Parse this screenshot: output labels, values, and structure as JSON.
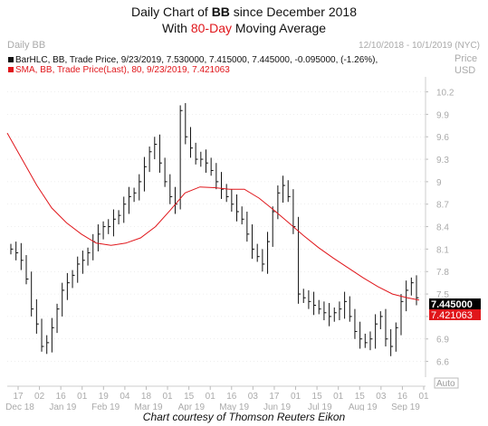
{
  "title": {
    "line1_prefix": "Daily Chart of ",
    "line1_ticker": "BB",
    "line1_suffix": " since December 2018",
    "line2_prefix": "With ",
    "line2_highlight": "80-Day",
    "line2_suffix": " Moving Average"
  },
  "chart_header": {
    "name": "Daily BB",
    "date_range": "12/10/2018 - 10/1/2019 (NYC)",
    "price_label": "Price",
    "currency_label": "USD"
  },
  "legend": {
    "bar_line": "BarHLC, BB, Trade Price, 9/23/2019, 7.530000, 7.415000, 7.445000, -0.095000, (-1.26%),",
    "sma_line": "SMA, BB, Trade Price(Last), 80, 9/23/2019, 7.421063"
  },
  "badges": {
    "last_price": "7.445000",
    "sma_value": "7.421063",
    "auto": "Auto"
  },
  "caption": "Chart courtesy of Thomson Reuters Eikon",
  "colors": {
    "price_bars": "#111111",
    "sma_line": "#e0161b",
    "highlight_text": "#e0161b",
    "axis_text": "#aaaaaa",
    "grid": "#dddddd"
  },
  "chart_data": {
    "type": "line",
    "ylim": [
      6.45,
      10.4
    ],
    "y_ticks": [
      "10.2",
      "9.9",
      "9.6",
      "9.3",
      "9",
      "8.7",
      "8.4",
      "8.1",
      "7.8",
      "7.5",
      "7.2",
      "6.9",
      "6.6"
    ],
    "x_day_ticks": [
      "17",
      "02",
      "16",
      "01",
      "19",
      "04",
      "18",
      "01",
      "15",
      "01",
      "16",
      "03",
      "17",
      "01",
      "15",
      "01",
      "15",
      "03",
      "16",
      "01"
    ],
    "x_month_labels": [
      "Dec 18",
      "Jan 19",
      "Feb 19",
      "Mar 19",
      "Apr 19",
      "May 19",
      "Jun 19",
      "Jul 19",
      "Aug 19",
      "Sep 19"
    ],
    "series": [
      {
        "name": "BarHLC, BB, Trade Price",
        "approx_closes": [
          8.1,
          8.05,
          7.95,
          7.7,
          7.3,
          7.1,
          6.8,
          6.85,
          7.05,
          7.3,
          7.55,
          7.65,
          7.75,
          7.9,
          7.95,
          8.05,
          8.2,
          8.3,
          8.4,
          8.4,
          8.5,
          8.55,
          8.7,
          8.8,
          8.85,
          9.0,
          9.2,
          9.4,
          9.5,
          9.25,
          9.0,
          8.8,
          8.7,
          9.95,
          9.6,
          9.45,
          9.3,
          9.3,
          9.25,
          9.15,
          9.0,
          8.9,
          8.8,
          8.7,
          8.6,
          8.5,
          8.3,
          8.1,
          8.0,
          7.9,
          8.2,
          8.6,
          8.85,
          8.95,
          8.8,
          8.4,
          7.5,
          7.45,
          7.4,
          7.35,
          7.3,
          7.25,
          7.2,
          7.25,
          7.3,
          7.4,
          7.2,
          7.0,
          6.9,
          6.85,
          6.9,
          7.1,
          7.2,
          6.9,
          6.8,
          7.05,
          7.4,
          7.55,
          7.65,
          7.45
        ]
      },
      {
        "name": "SMA, BB, Trade Price(Last), 80",
        "points": [
          [
            0,
            9.65
          ],
          [
            5,
            9.3
          ],
          [
            10,
            8.95
          ],
          [
            15,
            8.65
          ],
          [
            20,
            8.45
          ],
          [
            25,
            8.3
          ],
          [
            30,
            8.18
          ],
          [
            35,
            8.15
          ],
          [
            40,
            8.18
          ],
          [
            45,
            8.25
          ],
          [
            50,
            8.4
          ],
          [
            55,
            8.62
          ],
          [
            60,
            8.85
          ],
          [
            65,
            8.93
          ],
          [
            70,
            8.92
          ],
          [
            75,
            8.9
          ],
          [
            80,
            8.9
          ],
          [
            85,
            8.78
          ],
          [
            90,
            8.62
          ],
          [
            95,
            8.45
          ],
          [
            100,
            8.28
          ],
          [
            105,
            8.12
          ],
          [
            110,
            7.98
          ],
          [
            115,
            7.85
          ],
          [
            120,
            7.72
          ],
          [
            125,
            7.6
          ],
          [
            130,
            7.5
          ],
          [
            135,
            7.45
          ],
          [
            139,
            7.42
          ]
        ]
      }
    ]
  }
}
